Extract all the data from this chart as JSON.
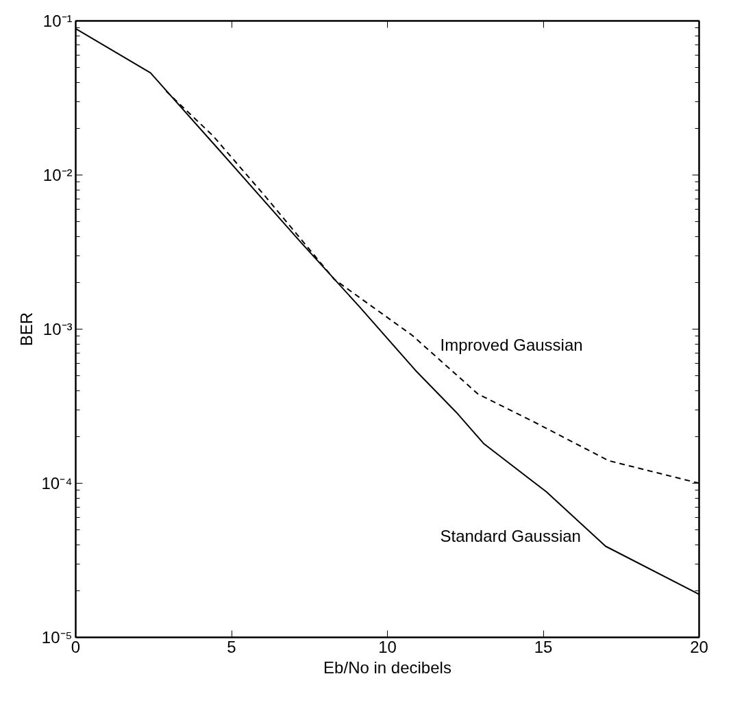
{
  "chart_data": {
    "type": "line",
    "xlabel": "Eb/No in decibels",
    "ylabel": "BER",
    "log": "y",
    "grid": false,
    "xlim": [
      0,
      20
    ],
    "xticks": [
      0,
      5,
      10,
      15,
      20
    ],
    "ylim": [
      1e-05,
      0.1
    ],
    "yticks": [
      {
        "value": 1e-05,
        "label": "10⁻⁵"
      },
      {
        "value": 0.0001,
        "label": "10⁻⁴"
      },
      {
        "value": 0.001,
        "label": "10⁻³"
      },
      {
        "value": 0.01,
        "label": "10⁻²"
      },
      {
        "value": 0.1,
        "label": "10⁻¹"
      }
    ],
    "series": [
      {
        "color": "#000000",
        "line_style": "solid",
        "x": [
          0,
          2.4,
          4.7,
          7.2,
          9.1,
          10.9,
          12.2,
          13.1,
          15.1,
          17,
          20
        ],
        "values": [
          0.089,
          0.046,
          0.0138,
          0.0037,
          0.0014,
          0.00054,
          0.00029,
          0.00018,
          8.8e-05,
          3.9e-05,
          1.9e-05
        ]
      },
      {
        "color": "#000000",
        "line_style": "dashed",
        "x": [
          2.9,
          4.4,
          6.1,
          8.3,
          10.8,
          12.9,
          14.7,
          17.1,
          20
        ],
        "values": [
          0.035,
          0.018,
          0.0072,
          0.0021,
          0.00091,
          0.00038,
          0.00025,
          0.00014,
          0.0001
        ]
      }
    ],
    "annotations": [
      "Improved Gaussian",
      "Standard Gaussian"
    ]
  }
}
